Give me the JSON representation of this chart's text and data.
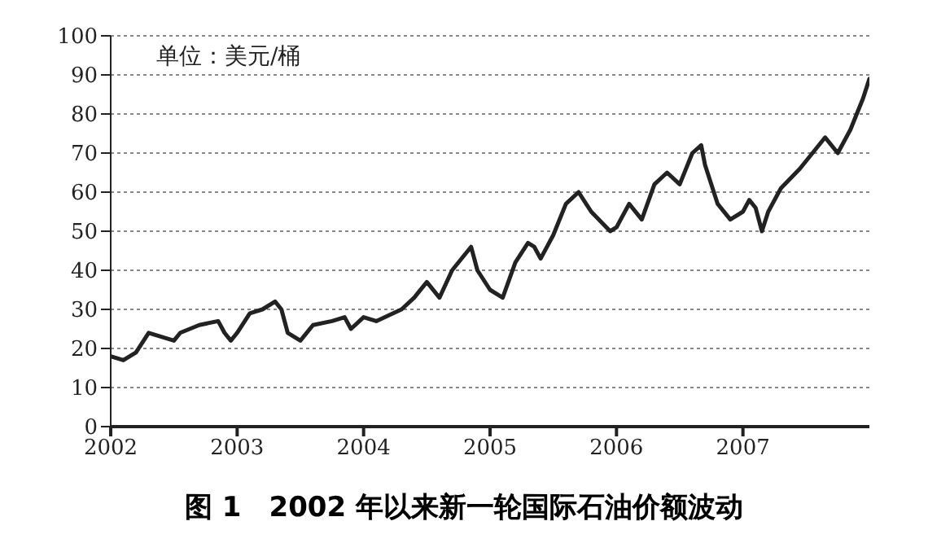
{
  "chart_data": {
    "type": "line",
    "title": "图 1　2002 年以来新一轮国际石油价额波动",
    "annotations": [
      "单位：美元/桶"
    ],
    "x": [
      2002.0,
      2002.1,
      2002.2,
      2002.3,
      2002.4,
      2002.5,
      2002.55,
      2002.7,
      2002.85,
      2002.9,
      2002.95,
      2003.0,
      2003.1,
      2003.2,
      2003.3,
      2003.35,
      2003.4,
      2003.5,
      2003.6,
      2003.75,
      2003.85,
      2003.9,
      2004.0,
      2004.1,
      2004.3,
      2004.4,
      2004.5,
      2004.6,
      2004.7,
      2004.8,
      2004.85,
      2004.9,
      2005.0,
      2005.1,
      2005.2,
      2005.3,
      2005.35,
      2005.4,
      2005.5,
      2005.6,
      2005.7,
      2005.8,
      2005.95,
      2006.0,
      2006.1,
      2006.2,
      2006.3,
      2006.4,
      2006.5,
      2006.6,
      2006.67,
      2006.7,
      2006.8,
      2006.9,
      2007.0,
      2007.05,
      2007.1,
      2007.15,
      2007.2,
      2007.3,
      2007.45,
      2007.55,
      2007.65,
      2007.75,
      2007.85,
      2007.95,
      2008.0
    ],
    "series": [
      {
        "color": "#222222",
        "values": [
          18,
          17,
          19,
          24,
          23,
          22,
          24,
          26,
          27,
          24,
          22,
          24,
          29,
          30,
          32,
          30,
          24,
          22,
          26,
          27,
          28,
          25,
          28,
          27,
          30,
          33,
          37,
          33,
          40,
          44,
          46,
          40,
          35,
          33,
          42,
          47,
          46,
          43,
          49,
          57,
          60,
          55,
          50,
          51,
          57,
          53,
          62,
          65,
          62,
          70,
          72,
          67,
          57,
          53,
          55,
          58,
          56,
          50,
          55,
          61,
          66,
          70,
          74,
          70,
          76,
          84,
          89
        ]
      }
    ],
    "xlim": [
      2002,
      2008
    ],
    "xticks": [
      2002,
      2003,
      2004,
      2005,
      2006,
      2007
    ],
    "ylim": [
      0,
      100
    ],
    "yticks": [
      0,
      10,
      20,
      30,
      40,
      50,
      60,
      70,
      80,
      90,
      100
    ],
    "grid": "y",
    "legend": false,
    "marker": "none",
    "line_style": "solid"
  }
}
